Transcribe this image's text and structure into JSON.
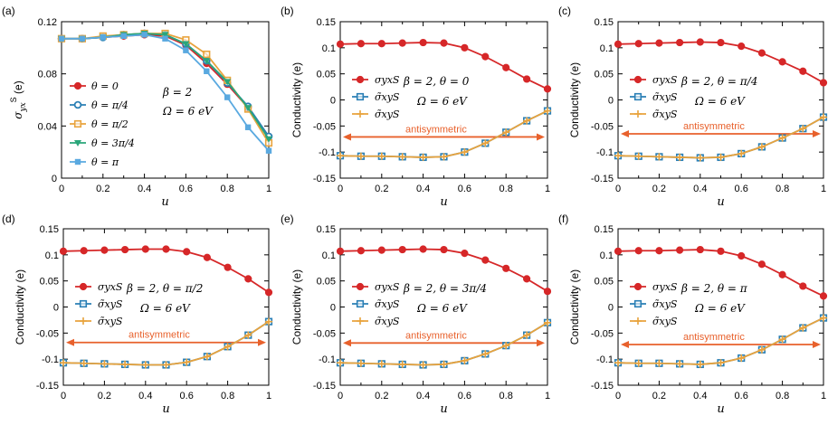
{
  "chart_data": [
    {
      "panel": "(a)",
      "type": "line",
      "ylabel": "σyxS (e)",
      "xlabel": "u",
      "xlim": [
        0,
        1
      ],
      "ylim": [
        0,
        0.12
      ],
      "xticks": [
        "0",
        "0.2",
        "0.4",
        "0.6",
        "0.8",
        "1"
      ],
      "yticks": [
        "0",
        "0.04",
        "0.08",
        "0.12"
      ],
      "annotation": [
        "β = 2",
        "Ω = 6 eV"
      ],
      "legend": "left",
      "x": [
        0,
        0.1,
        0.2,
        0.3,
        0.4,
        0.5,
        0.6,
        0.7,
        0.8,
        0.9,
        1.0
      ],
      "series": [
        {
          "name": "θ = 0",
          "color": "#d62728",
          "marker": "circle",
          "values": [
            0.107,
            0.107,
            0.108,
            0.109,
            0.11,
            0.109,
            0.102,
            0.088,
            0.072,
            0.054,
            0.032
          ]
        },
        {
          "name": "θ = π/4",
          "color": "#2a7fb5",
          "marker": "circle-open",
          "values": [
            0.107,
            0.107,
            0.108,
            0.11,
            0.111,
            0.11,
            0.103,
            0.09,
            0.073,
            0.055,
            0.032
          ]
        },
        {
          "name": "θ = π/2",
          "color": "#e8a33d",
          "marker": "square-open",
          "values": [
            0.107,
            0.107,
            0.109,
            0.11,
            0.111,
            0.111,
            0.106,
            0.095,
            0.075,
            0.053,
            0.027
          ]
        },
        {
          "name": "θ = 3π/4",
          "color": "#2aa67a",
          "marker": "triangle-down",
          "values": [
            0.107,
            0.107,
            0.108,
            0.11,
            0.111,
            0.11,
            0.103,
            0.09,
            0.074,
            0.054,
            0.03
          ]
        },
        {
          "name": "θ = π",
          "color": "#5aa9e0",
          "marker": "x-square",
          "values": [
            0.107,
            0.107,
            0.108,
            0.109,
            0.11,
            0.107,
            0.098,
            0.082,
            0.062,
            0.039,
            0.021
          ]
        }
      ]
    },
    {
      "panel": "(b)",
      "type": "line",
      "ylabel": "Conductivity (e)",
      "xlabel": "u",
      "xlim": [
        0,
        1
      ],
      "ylim": [
        -0.15,
        0.15
      ],
      "xticks": [
        "0",
        "0.2",
        "0.4",
        "0.6",
        "0.8",
        "1"
      ],
      "yticks": [
        "-0.15",
        "-0.1",
        "-0.05",
        "0",
        "0.05",
        "0.1",
        "0.15"
      ],
      "annotation": [
        "β = 2, θ = 0",
        "Ω = 6 eV"
      ],
      "antisymmetric_label": "antisymmetric",
      "antisymmetric_value": -0.071,
      "x": [
        0,
        0.1,
        0.2,
        0.3,
        0.4,
        0.5,
        0.6,
        0.7,
        0.8,
        0.9,
        1.0
      ],
      "series": [
        {
          "name": "σyxS",
          "color": "#d62728",
          "marker": "circle",
          "values": [
            0.107,
            0.108,
            0.108,
            0.109,
            0.11,
            0.109,
            0.1,
            0.083,
            0.062,
            0.04,
            0.021
          ]
        },
        {
          "name": "σ̃xyS",
          "color": "#2a7fb5",
          "marker": "square-open",
          "values": [
            -0.107,
            -0.108,
            -0.108,
            -0.109,
            -0.11,
            -0.109,
            -0.1,
            -0.083,
            -0.062,
            -0.04,
            -0.021
          ]
        },
        {
          "name": "σ̃xyS",
          "color": "#e8a33d",
          "marker": "plus",
          "values": [
            -0.107,
            -0.108,
            -0.108,
            -0.109,
            -0.11,
            -0.109,
            -0.1,
            -0.083,
            -0.062,
            -0.04,
            -0.021
          ]
        }
      ]
    },
    {
      "panel": "(c)",
      "type": "line",
      "ylabel": "Conductivity (e)",
      "xlabel": "u",
      "xlim": [
        0,
        1
      ],
      "ylim": [
        -0.15,
        0.15
      ],
      "xticks": [
        "0",
        "0.2",
        "0.4",
        "0.6",
        "0.8",
        "1"
      ],
      "yticks": [
        "-0.15",
        "-0.1",
        "-0.05",
        "0",
        "0.05",
        "0.1",
        "0.15"
      ],
      "annotation": [
        "β = 2, θ = π/4",
        "Ω = 6 eV"
      ],
      "antisymmetric_label": "antisymmetric",
      "antisymmetric_value": -0.065,
      "x": [
        0,
        0.1,
        0.2,
        0.3,
        0.4,
        0.5,
        0.6,
        0.7,
        0.8,
        0.9,
        1.0
      ],
      "series": [
        {
          "name": "σyxS",
          "color": "#d62728",
          "marker": "circle",
          "values": [
            0.107,
            0.108,
            0.109,
            0.11,
            0.111,
            0.11,
            0.103,
            0.09,
            0.073,
            0.055,
            0.033
          ]
        },
        {
          "name": "σ̃xyS",
          "color": "#2a7fb5",
          "marker": "square-open",
          "values": [
            -0.107,
            -0.108,
            -0.109,
            -0.11,
            -0.111,
            -0.11,
            -0.103,
            -0.09,
            -0.073,
            -0.055,
            -0.033
          ]
        },
        {
          "name": "σ̃xyS",
          "color": "#e8a33d",
          "marker": "plus",
          "values": [
            -0.107,
            -0.108,
            -0.109,
            -0.11,
            -0.111,
            -0.11,
            -0.103,
            -0.09,
            -0.073,
            -0.055,
            -0.033
          ]
        }
      ]
    },
    {
      "panel": "(d)",
      "type": "line",
      "ylabel": "Conductivity (e)",
      "xlabel": "u",
      "xlim": [
        0,
        1
      ],
      "ylim": [
        -0.15,
        0.15
      ],
      "xticks": [
        "0",
        "0.2",
        "0.4",
        "0.6",
        "0.8",
        "1"
      ],
      "yticks": [
        "-0.15",
        "-0.1",
        "-0.05",
        "0",
        "0.05",
        "0.1",
        "0.15"
      ],
      "annotation": [
        "β = 2, θ = π/2",
        "Ω = 6 eV"
      ],
      "antisymmetric_label": "antisymmetric",
      "antisymmetric_value": -0.068,
      "x": [
        0,
        0.1,
        0.2,
        0.3,
        0.4,
        0.5,
        0.6,
        0.7,
        0.8,
        0.9,
        1.0
      ],
      "series": [
        {
          "name": "σyxS",
          "color": "#d62728",
          "marker": "circle",
          "values": [
            0.107,
            0.108,
            0.109,
            0.11,
            0.111,
            0.111,
            0.106,
            0.095,
            0.076,
            0.054,
            0.028
          ]
        },
        {
          "name": "σ̃xyS",
          "color": "#2a7fb5",
          "marker": "square-open",
          "values": [
            -0.107,
            -0.108,
            -0.109,
            -0.11,
            -0.111,
            -0.111,
            -0.106,
            -0.095,
            -0.076,
            -0.054,
            -0.028
          ]
        },
        {
          "name": "σ̃xyS",
          "color": "#e8a33d",
          "marker": "plus",
          "values": [
            -0.107,
            -0.108,
            -0.109,
            -0.11,
            -0.111,
            -0.111,
            -0.106,
            -0.095,
            -0.076,
            -0.054,
            -0.028
          ]
        }
      ]
    },
    {
      "panel": "(e)",
      "type": "line",
      "ylabel": "Conductivity (e)",
      "xlabel": "u",
      "xlim": [
        0,
        1
      ],
      "ylim": [
        -0.15,
        0.15
      ],
      "xticks": [
        "0",
        "0.2",
        "0.4",
        "0.6",
        "0.8",
        "1"
      ],
      "yticks": [
        "-0.15",
        "-0.1",
        "-0.05",
        "0",
        "0.05",
        "0.1",
        "0.15"
      ],
      "annotation": [
        "β = 2, θ = 3π/4",
        "Ω = 6 eV"
      ],
      "antisymmetric_label": "antisymmetric",
      "antisymmetric_value": -0.069,
      "x": [
        0,
        0.1,
        0.2,
        0.3,
        0.4,
        0.5,
        0.6,
        0.7,
        0.8,
        0.9,
        1.0
      ],
      "series": [
        {
          "name": "σyxS",
          "color": "#d62728",
          "marker": "circle",
          "values": [
            0.107,
            0.108,
            0.109,
            0.11,
            0.111,
            0.11,
            0.103,
            0.09,
            0.074,
            0.054,
            0.03
          ]
        },
        {
          "name": "σ̃xyS",
          "color": "#2a7fb5",
          "marker": "square-open",
          "values": [
            -0.107,
            -0.108,
            -0.109,
            -0.11,
            -0.111,
            -0.11,
            -0.103,
            -0.09,
            -0.074,
            -0.054,
            -0.03
          ]
        },
        {
          "name": "σ̃xyS",
          "color": "#e8a33d",
          "marker": "plus",
          "values": [
            -0.107,
            -0.108,
            -0.109,
            -0.11,
            -0.111,
            -0.11,
            -0.103,
            -0.09,
            -0.074,
            -0.054,
            -0.03
          ]
        }
      ]
    },
    {
      "panel": "(f)",
      "type": "line",
      "ylabel": "Conductivity (e)",
      "xlabel": "u",
      "xlim": [
        0,
        1
      ],
      "ylim": [
        -0.15,
        0.15
      ],
      "xticks": [
        "0",
        "0.2",
        "0.4",
        "0.6",
        "0.8",
        "1"
      ],
      "yticks": [
        "-0.15",
        "-0.1",
        "-0.05",
        "0",
        "0.05",
        "0.1",
        "0.15"
      ],
      "annotation": [
        "β = 2, θ = π",
        "Ω = 6 eV"
      ],
      "antisymmetric_label": "antisymmetric",
      "antisymmetric_value": -0.072,
      "x": [
        0,
        0.1,
        0.2,
        0.3,
        0.4,
        0.5,
        0.6,
        0.7,
        0.8,
        0.9,
        1.0
      ],
      "series": [
        {
          "name": "σyxS",
          "color": "#d62728",
          "marker": "circle",
          "values": [
            0.107,
            0.108,
            0.108,
            0.109,
            0.11,
            0.107,
            0.098,
            0.082,
            0.062,
            0.04,
            0.021
          ]
        },
        {
          "name": "σ̃xyS",
          "color": "#2a7fb5",
          "marker": "square-open",
          "values": [
            -0.107,
            -0.108,
            -0.108,
            -0.109,
            -0.11,
            -0.107,
            -0.098,
            -0.082,
            -0.062,
            -0.04,
            -0.021
          ]
        },
        {
          "name": "σ̃xyS",
          "color": "#e8a33d",
          "marker": "plus",
          "values": [
            -0.107,
            -0.108,
            -0.108,
            -0.109,
            -0.11,
            -0.107,
            -0.098,
            -0.082,
            -0.062,
            -0.04,
            -0.021
          ]
        }
      ]
    }
  ]
}
